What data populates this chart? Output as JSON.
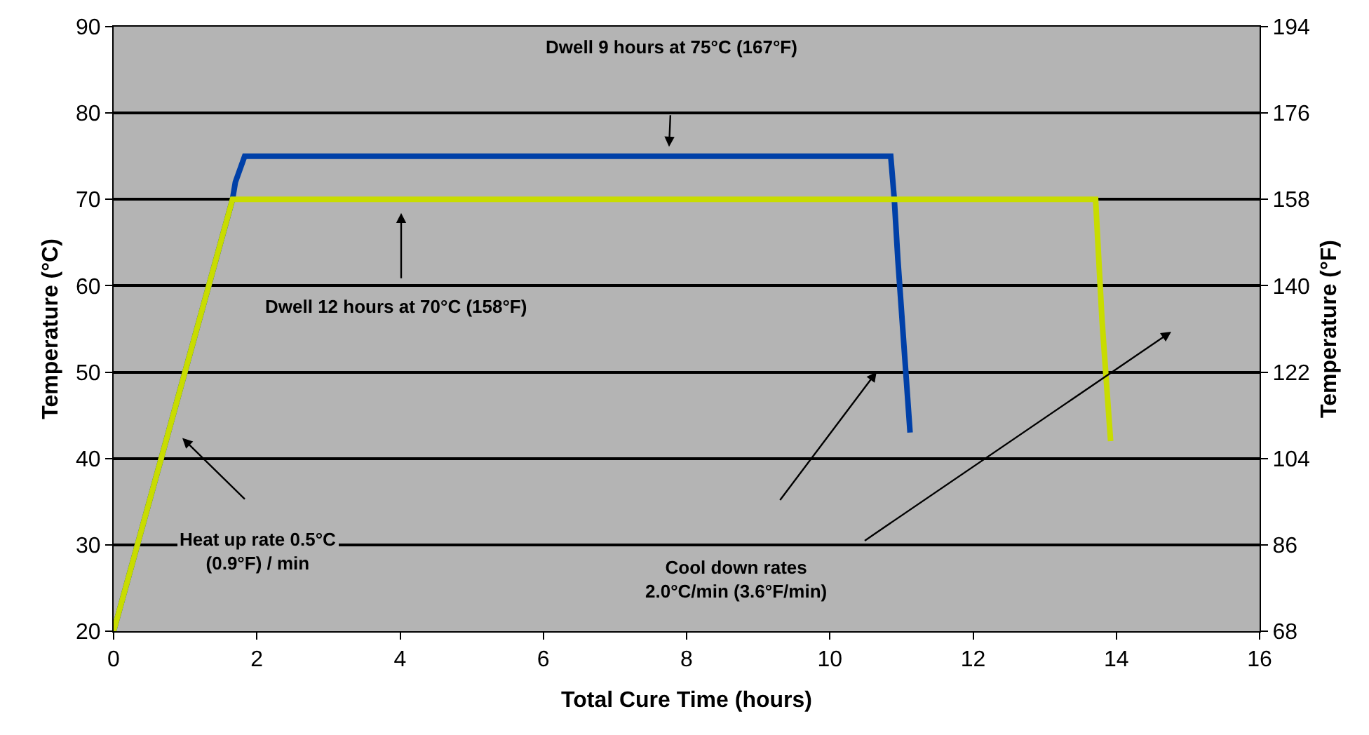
{
  "chart_data": {
    "type": "line",
    "xlabel": "Total Cure Time (hours)",
    "ylabel": "Temperature (°C)",
    "y2label": "Temperature (°F)",
    "series": [
      {
        "color": "#0040a8",
        "x": [
          0,
          1.66,
          1.7,
          1.83,
          10.85,
          10.9,
          10.95,
          11.12
        ],
        "values": [
          20,
          70,
          72,
          75,
          75,
          70,
          63,
          43
        ]
      },
      {
        "color": "#c8dc00",
        "x": [
          0,
          1.66,
          13.71,
          13.8,
          13.92
        ],
        "values": [
          20,
          70,
          70,
          56,
          42
        ]
      }
    ],
    "xlim": [
      0,
      16
    ],
    "xticks": [
      0,
      2,
      4,
      6,
      8,
      10,
      12,
      14,
      16
    ],
    "ylim": [
      20,
      90
    ],
    "yticks": [
      20,
      30,
      40,
      50,
      60,
      70,
      80,
      90
    ],
    "y2lim": [
      68,
      194
    ],
    "y2ticks": [
      68,
      86,
      104,
      122,
      140,
      158,
      176,
      194
    ],
    "annotations": [
      "Dwell 9 hours at 75°C (167°F)",
      "Dwell 12 hours at 70°C (158°F)",
      "Heat up rate 0.5°C\n(0.9°F) / min",
      "Cool down rates\n2.0°C/min (3.6°F/min)"
    ],
    "grid": "y",
    "line_style": "solid"
  }
}
